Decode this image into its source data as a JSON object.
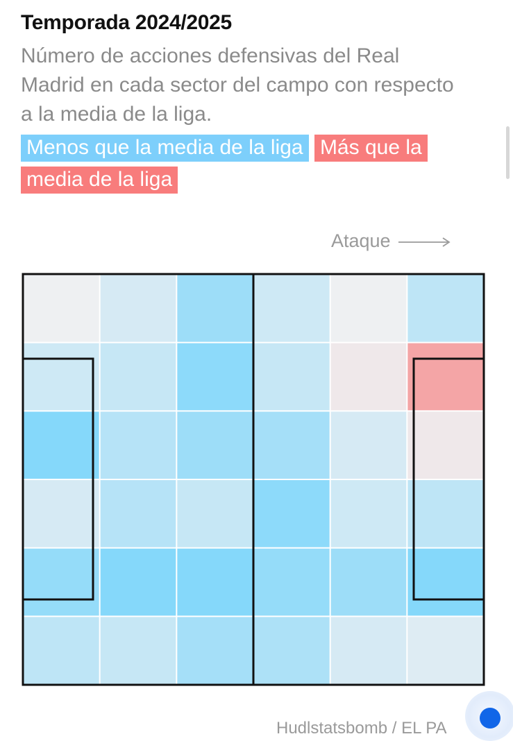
{
  "header": {
    "title": "Temporada 2024/2025",
    "subtitle": "Número de acciones defensivas del Real Madrid en cada sector del campo con respecto a la media de la liga."
  },
  "legend": {
    "less_label": "Menos que la media de la liga",
    "more_label": "Más que la media de la liga",
    "less_color": "#7dcffb",
    "more_color": "#f87c7c"
  },
  "direction_label": "Ataque",
  "source": "Hudlstatsbomb / EL PA",
  "chart_data": {
    "type": "heatmap",
    "title": "Temporada 2024/2025",
    "subtitle": "Número de acciones defensivas del Real Madrid en cada sector del campo con respecto a la media de la liga.",
    "rows": 6,
    "cols": 6,
    "note": "values are relative intensity vs league average: negative = menos (blue), positive = más (red), 0 = similar (grey)",
    "values": [
      [
        0.0,
        -0.15,
        -0.5,
        -0.2,
        0.0,
        -0.3
      ],
      [
        -0.2,
        -0.25,
        -0.6,
        -0.25,
        0.05,
        0.45
      ],
      [
        -0.65,
        -0.35,
        -0.5,
        -0.45,
        -0.15,
        0.05
      ],
      [
        -0.15,
        -0.35,
        -0.25,
        -0.6,
        -0.2,
        -0.3
      ],
      [
        -0.55,
        -0.65,
        -0.65,
        -0.55,
        -0.5,
        -0.65
      ],
      [
        -0.3,
        -0.25,
        -0.45,
        -0.4,
        -0.15,
        -0.1
      ]
    ],
    "colors": {
      "negative": "#7dd6fb",
      "positive": "#f87c7c",
      "neutral": "#eef0f2"
    },
    "legend_position": "top-left"
  },
  "ui": {
    "fab_color": "#1166e8"
  }
}
